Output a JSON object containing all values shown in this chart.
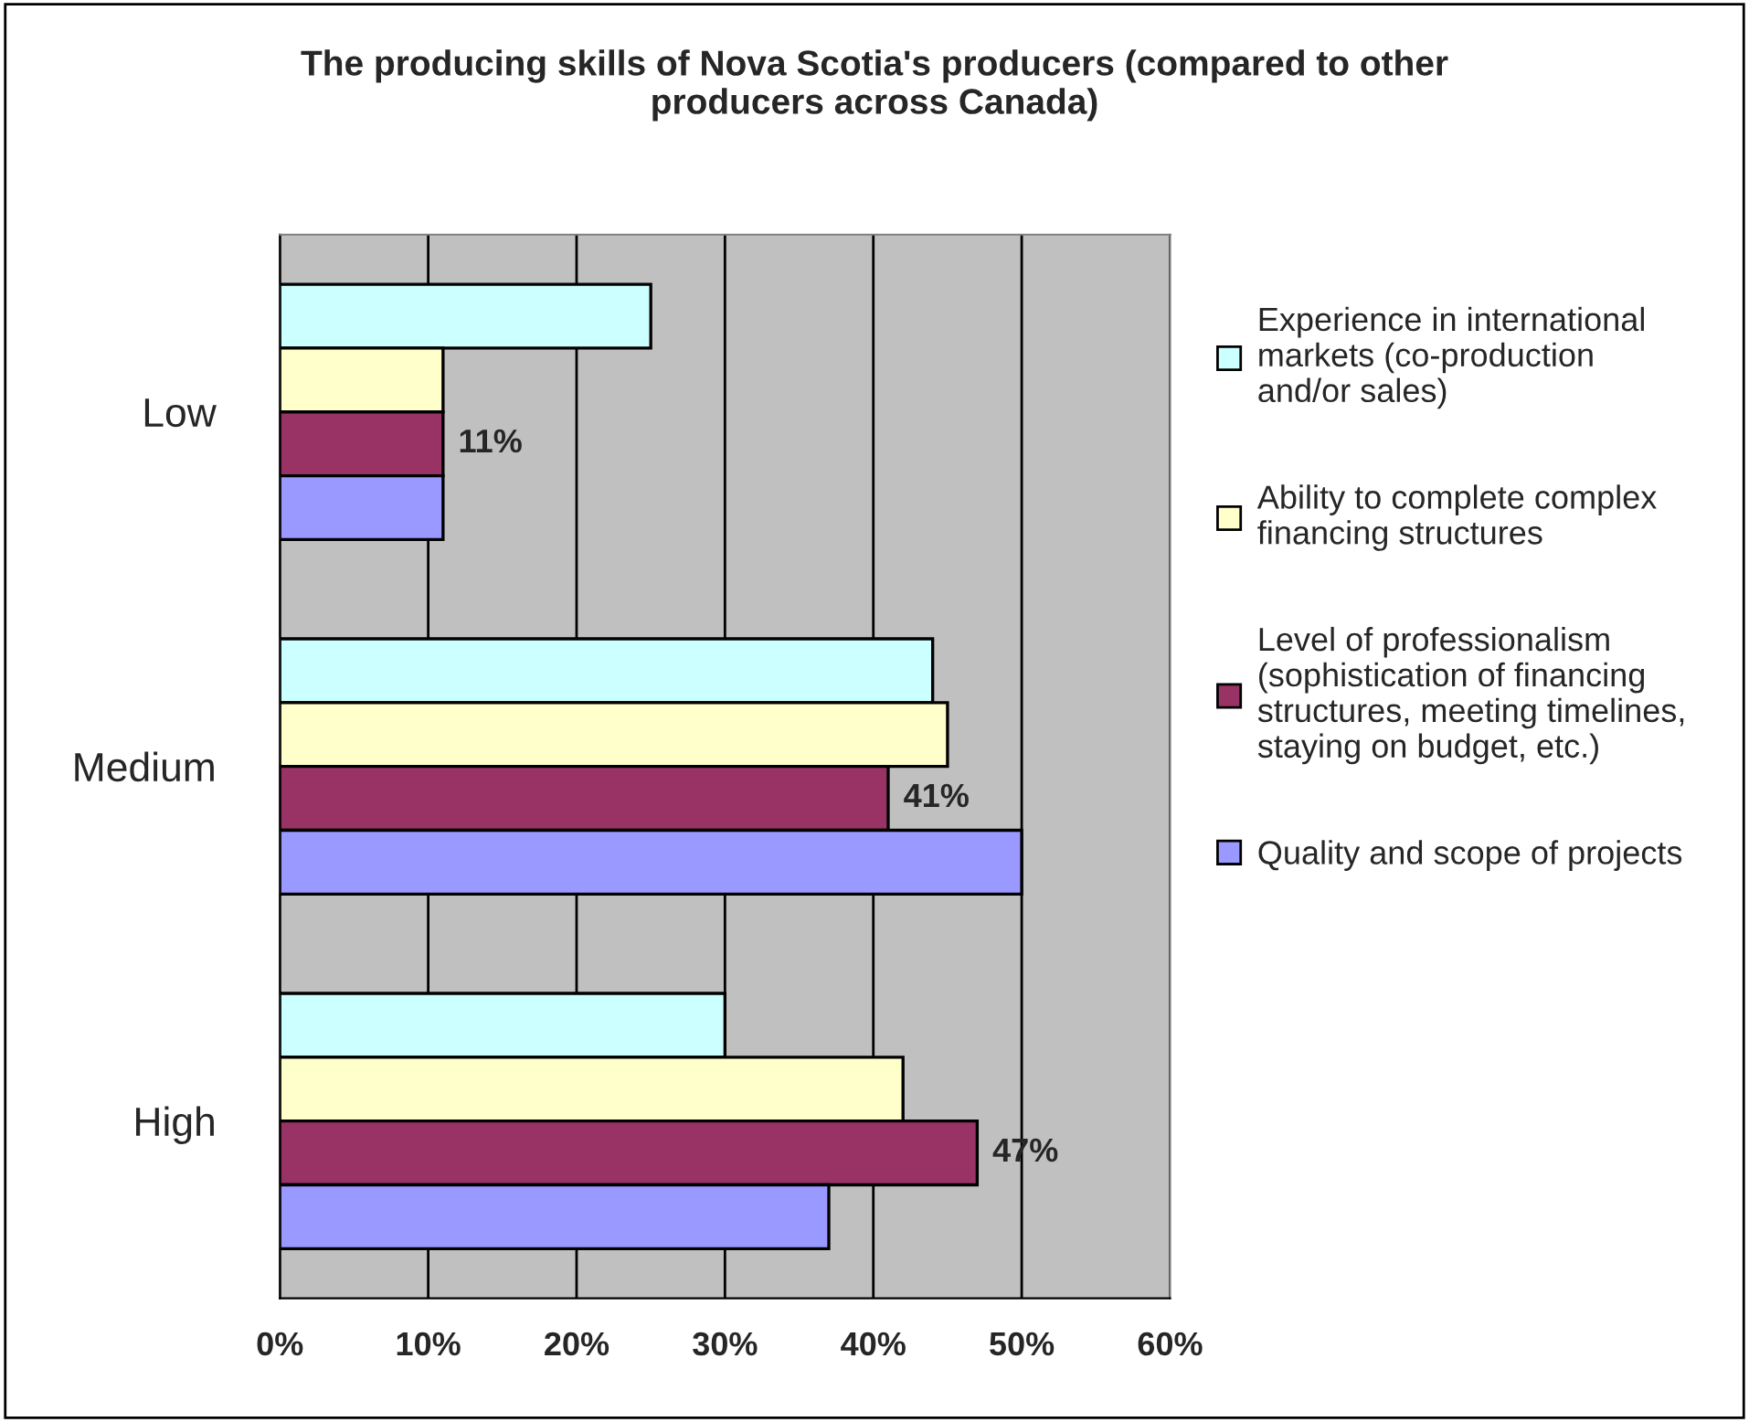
{
  "chart_data": {
    "type": "bar",
    "orientation": "horizontal",
    "title": "The producing skills of Nova Scotia's producers (compared to other\nproducers across Canada)",
    "categories": [
      "Low",
      "Medium",
      "High"
    ],
    "series": [
      {
        "name": "Experience in international\nmarkets (co-production\nand/or sales)",
        "color": "#ccffff",
        "values": [
          25,
          44,
          30
        ]
      },
      {
        "name": "Ability to complete complex\nfinancing structures",
        "color": "#ffffcc",
        "values": [
          11,
          45,
          42
        ]
      },
      {
        "name": "Level of professionalism\n(sophistication of financing\nstructures, meeting timelines,\nstaying on budget, etc.)",
        "color": "#993366",
        "values": [
          11,
          41,
          47
        ],
        "value_labels": [
          "11%",
          "41%",
          "47%"
        ]
      },
      {
        "name": "Quality and scope of projects",
        "color": "#9999ff",
        "values": [
          11,
          50,
          37
        ]
      }
    ],
    "xlim": [
      0,
      60
    ],
    "xticks": [
      {
        "value": 0,
        "label": "0%"
      },
      {
        "value": 10,
        "label": "10%"
      },
      {
        "value": 20,
        "label": "20%"
      },
      {
        "value": 30,
        "label": "30%"
      },
      {
        "value": 40,
        "label": "40%"
      },
      {
        "value": 50,
        "label": "50%"
      },
      {
        "value": 60,
        "label": "60%"
      }
    ],
    "grid": "x",
    "legend": "right"
  }
}
